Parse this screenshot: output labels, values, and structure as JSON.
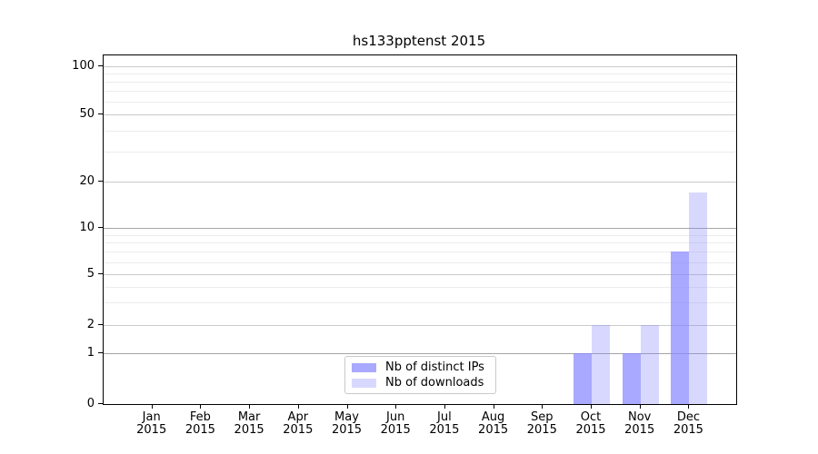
{
  "chart_data": {
    "type": "bar",
    "title": "hs133pptenst 2015",
    "categories": [
      "Jan",
      "Feb",
      "Mar",
      "Apr",
      "May",
      "Jun",
      "Jul",
      "Aug",
      "Sep",
      "Oct",
      "Nov",
      "Dec"
    ],
    "year": "2015",
    "series": [
      {
        "name": "Nb of distinct IPs",
        "color": "#8888ff",
        "alpha": 0.72,
        "values": [
          0,
          0,
          0,
          0,
          0,
          0,
          0,
          0,
          0,
          1,
          1,
          7
        ]
      },
      {
        "name": "Nb of downloads",
        "color": "#8888ff",
        "alpha": 0.33,
        "values": [
          0,
          0,
          0,
          0,
          0,
          0,
          0,
          0,
          0,
          2,
          2,
          17
        ]
      }
    ],
    "yscale": "symlog",
    "ylim": [
      0,
      112
    ],
    "yticks": [
      0,
      1,
      2,
      5,
      10,
      20,
      50,
      100
    ],
    "minor_yticks": [
      3,
      4,
      6,
      7,
      8,
      9,
      30,
      40,
      60,
      70,
      80,
      90
    ],
    "grid": "on",
    "legend_position": "inside-bottom-center",
    "grid_colors": {
      "power_of_ten": "#a5a5a5",
      "labeled": "#cacaca",
      "minor": "#ececec"
    }
  }
}
